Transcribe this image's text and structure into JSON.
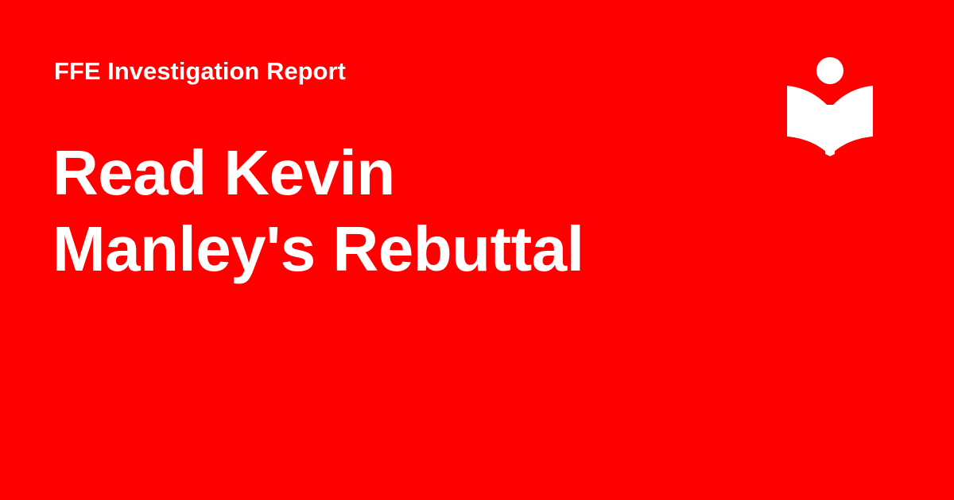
{
  "card": {
    "kicker": "FFE Investigation Report",
    "headline_line1": "Read Kevin",
    "headline_line2": "Manley's Rebuttal"
  },
  "logo": {
    "icon": "reader-book-icon",
    "color": "#FFFFFF"
  },
  "colors": {
    "background": "#FF0000",
    "text": "#FFFFFF"
  }
}
